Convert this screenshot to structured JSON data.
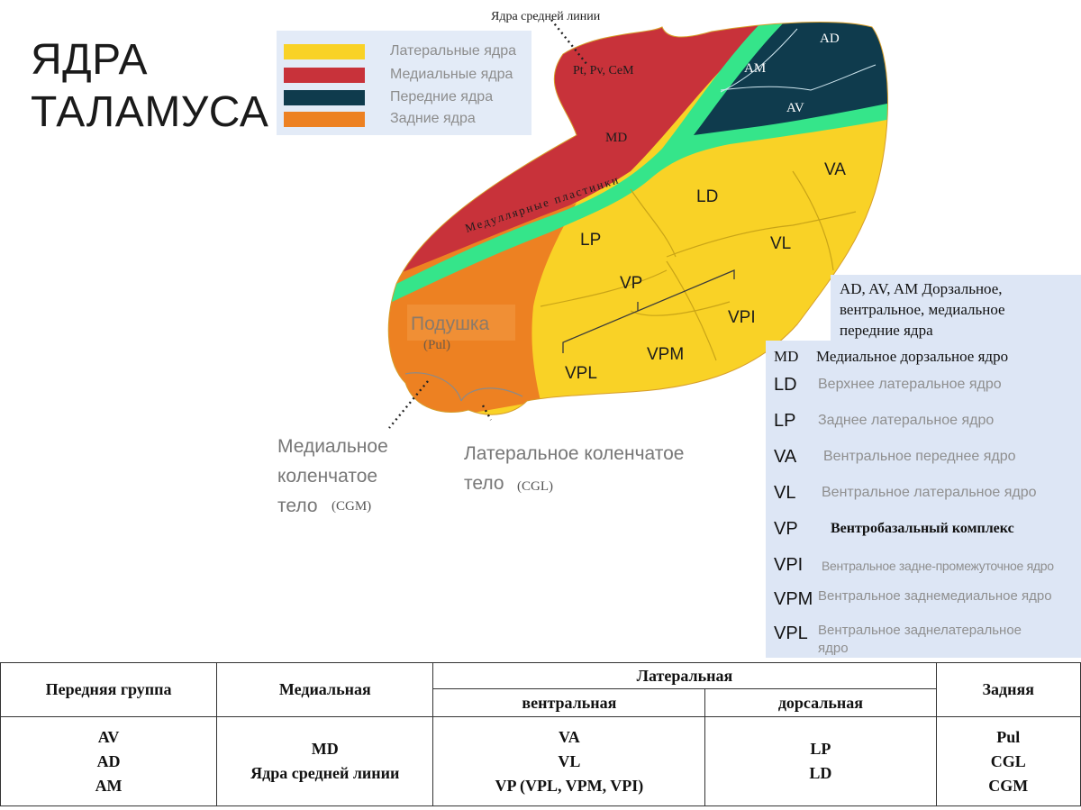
{
  "title": [
    "ЯДРА",
    "ТАЛАМУСА"
  ],
  "legend": [
    {
      "label": "Латеральные ядра",
      "color": "#f9d226"
    },
    {
      "label": "Медиальные ядра",
      "color": "#c8323a"
    },
    {
      "label": "Передние ядра",
      "color": "#0f3b4d"
    },
    {
      "label": "Задние ядра",
      "color": "#ed8122"
    }
  ],
  "colors": {
    "lateral": "#f9d226",
    "medial": "#c8323a",
    "anterior": "#0f3b4d",
    "posterior": "#ed8122",
    "lamina": "#35e58a",
    "legend_bg": "#e3ebf7"
  },
  "diagram": {
    "midline_label": "Ядра средней линии",
    "midline_nuclei": "Pt, Pv, CeM",
    "lamina_label": "Медуллярные пластинки",
    "regions": {
      "AD": "AD",
      "AM": "AM",
      "AV": "AV",
      "MD": "MD",
      "LD": "LD",
      "LP": "LP",
      "VA": "VA",
      "VL": "VL",
      "VP": "VP",
      "VPI": "VPI",
      "VPM": "VPM",
      "VPL": "VPL"
    },
    "pulvinar": "Подушка",
    "pulvinar_abbr": "(Pul)",
    "cgm_label": [
      "Медиальное",
      "коленчатое",
      "тело"
    ],
    "cgm_abbr": "(CGM)",
    "cgl_label": [
      "Латеральное коленчатое",
      "тело"
    ],
    "cgl_abbr": "(CGL)"
  },
  "abbreviations_header": [
    "AD, AV, AM Дорзальное,",
    "вентральное, медиальное",
    "передние ядра"
  ],
  "abbreviations": [
    {
      "code": "MD",
      "desc": "Медиальное дорзальное ядро"
    },
    {
      "code": "LD",
      "desc": "Верхнее латеральное ядро"
    },
    {
      "code": "LP",
      "desc": "Заднее латеральное ядро"
    },
    {
      "code": "VA",
      "desc": "Вентральное переднее ядро"
    },
    {
      "code": "VL",
      "desc": "Вентральное латеральное ядро"
    },
    {
      "code": "VP",
      "desc": "Вентробазальный комплекс"
    },
    {
      "code": "VPI",
      "desc": "Вентральное задне-промежуточное ядро"
    },
    {
      "code": "VPM",
      "desc": "Вентральное заднемедиальное ядро"
    },
    {
      "code": "VPL",
      "desc": "Вентральное заднелатеральное ядро"
    }
  ],
  "table": {
    "headers": {
      "anterior": "Передняя группа",
      "medial": "Медиальная",
      "lateral": "Латеральная",
      "ventral": "вентральная",
      "dorsal": "дорсальная",
      "posterior": "Задняя"
    },
    "cells": {
      "anterior": [
        "AV",
        "AD",
        "AM"
      ],
      "medial": [
        "MD",
        "Ядра средней линии"
      ],
      "ventral": [
        "VA",
        "VL",
        "VP (VPL, VPM, VPI)"
      ],
      "dorsal": [
        "LP",
        "LD"
      ],
      "posterior": [
        "Pul",
        "CGL",
        "CGM"
      ]
    }
  }
}
